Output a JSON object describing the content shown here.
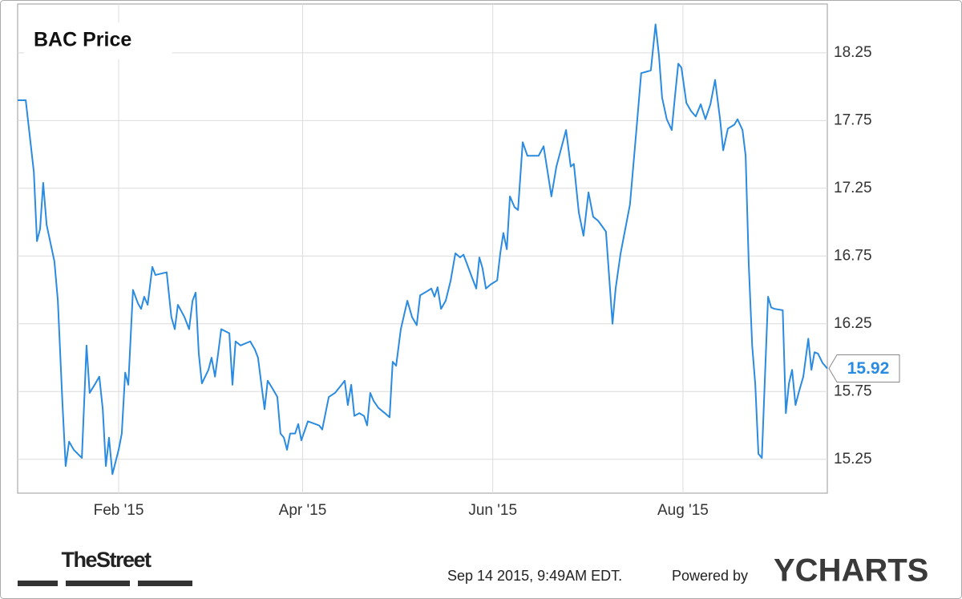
{
  "chart_data": {
    "type": "line",
    "title": "BAC Price",
    "x": [
      -1.4,
      1.2,
      3.8,
      4.8,
      5.8,
      6.8,
      7.9,
      10.4,
      11.5,
      13.0,
      14.0,
      15.1,
      16.6,
      19.2,
      20.7,
      21.7,
      23.3,
      24.8,
      25.9,
      26.9,
      27.9,
      29.0,
      31.0,
      32.0,
      33.1,
      34.1,
      35.6,
      37.2,
      38.2,
      39.2,
      40.3,
      41.8,
      42.8,
      46.4,
      47.9,
      49.0,
      50.0,
      52.1,
      53.6,
      54.7,
      55.7,
      56.7,
      57.7,
      59.8,
      60.8,
      61.9,
      62.9,
      63.9,
      66.5,
      67.5,
      68.5,
      70.1,
      73.2,
      74.7,
      75.7,
      76.8,
      77.8,
      78.8,
      80.4,
      81.9,
      82.9,
      84.0,
      85.0,
      86.0,
      87.6,
      88.6,
      89.6,
      91.7,
      95.3,
      96.3,
      98.4,
      100.4,
      102.5,
      103.5,
      104.5,
      105.6,
      106.6,
      108.2,
      109.7,
      110.7,
      111.7,
      112.8,
      114.3,
      116.4,
      117.9,
      118.9,
      120.0,
      121.5,
      123.6,
      125.1,
      126.6,
      127.7,
      129.2,
      131.3,
      132.3,
      133.3,
      134.4,
      135.9,
      137.5,
      139.0,
      140.5,
      141.6,
      142.6,
      144.2,
      145.7,
      146.7,
      147.7,
      148.8,
      150.3,
      152.4,
      153.4,
      154.4,
      155.5,
      156.5,
      158.0,
      159.1,
      160.6,
      162.1,
      165.7,
      167.3,
      168.8,
      169.8,
      171.4,
      172.9,
      174.5,
      176.0,
      177.0,
      178.6,
      180.1,
      181.7,
      183.2,
      184.8,
      187.3,
      189.4,
      190.4,
      192.0,
      193.5,
      195.0,
      197.1,
      198.6,
      200.2,
      201.7,
      203.2,
      204.3,
      205.3,
      206.8,
      208.4,
      209.4,
      210.5,
      211.5,
      213.1,
      214.6,
      216.1,
      217.7,
      219.2,
      220.8,
      222.3,
      223.9,
      224.9,
      226.4,
      228.5,
      229.5,
      231.1,
      232.1,
      233.1,
      234.2,
      235.2,
      236.2,
      237.3,
      238.3,
      239.3,
      240.3,
      241.4,
      244.0,
      245.0,
      246.0,
      247.0,
      248.1,
      249.1,
      250.6,
      252.2,
      253.2,
      254.2,
      255.3,
      256.8,
      258.3
    ],
    "series": [
      {
        "name": "BAC Price",
        "color": "#2a8be0",
        "values": [
          17.9,
          17.9,
          17.37,
          16.86,
          16.95,
          17.29,
          16.98,
          16.71,
          16.42,
          15.65,
          15.2,
          15.38,
          15.32,
          15.26,
          16.09,
          15.74,
          15.8,
          15.86,
          15.62,
          15.2,
          15.41,
          15.14,
          15.32,
          15.44,
          15.89,
          15.8,
          16.5,
          16.4,
          16.36,
          16.45,
          16.39,
          16.67,
          16.61,
          16.63,
          16.3,
          16.21,
          16.39,
          16.3,
          16.21,
          16.42,
          16.48,
          16.03,
          15.81,
          15.91,
          16.0,
          15.86,
          16.03,
          16.21,
          16.18,
          15.8,
          16.12,
          16.09,
          16.12,
          16.06,
          16.0,
          15.8,
          15.62,
          15.83,
          15.77,
          15.71,
          15.44,
          15.41,
          15.32,
          15.44,
          15.44,
          15.51,
          15.39,
          15.53,
          15.5,
          15.47,
          15.71,
          15.74,
          15.8,
          15.83,
          15.65,
          15.8,
          15.57,
          15.59,
          15.57,
          15.5,
          15.74,
          15.68,
          15.63,
          15.59,
          15.56,
          15.97,
          15.94,
          16.21,
          16.42,
          16.3,
          16.24,
          16.46,
          16.48,
          16.51,
          16.45,
          16.52,
          16.36,
          16.42,
          16.57,
          16.77,
          16.74,
          16.76,
          16.7,
          16.6,
          16.51,
          16.74,
          16.66,
          16.51,
          16.54,
          16.57,
          16.77,
          16.92,
          16.8,
          17.19,
          17.11,
          17.09,
          17.59,
          17.49,
          17.49,
          17.56,
          17.34,
          17.19,
          17.41,
          17.54,
          17.68,
          17.41,
          17.43,
          17.07,
          16.9,
          17.22,
          17.04,
          17.01,
          16.93,
          16.25,
          16.51,
          16.77,
          16.95,
          17.13,
          17.69,
          18.1,
          18.11,
          18.12,
          18.46,
          18.23,
          17.92,
          17.76,
          17.68,
          17.92,
          18.17,
          18.14,
          17.88,
          17.82,
          17.78,
          17.87,
          17.76,
          17.87,
          18.05,
          17.76,
          17.53,
          17.69,
          17.72,
          17.76,
          17.68,
          17.49,
          16.69,
          16.09,
          15.8,
          15.29,
          15.26,
          15.86,
          16.45,
          16.37,
          16.36,
          16.35,
          15.59,
          15.81,
          15.91,
          15.65,
          15.74,
          15.86,
          16.14,
          15.91,
          16.04,
          16.03,
          15.96,
          15.92
        ]
      }
    ],
    "xlim": [
      -1.4,
      258.3
    ],
    "xticks": [
      {
        "value": 31,
        "label": "Feb '15"
      },
      {
        "value": 90,
        "label": "Apr '15"
      },
      {
        "value": 151,
        "label": "Jun '15"
      },
      {
        "value": 212,
        "label": "Aug '15"
      }
    ],
    "ylim": [
      15.0,
      18.61
    ],
    "yticks": [
      15.25,
      15.75,
      16.25,
      16.75,
      17.25,
      17.75,
      18.25
    ],
    "grid": true,
    "timestamp": "Sep 14 2015, 9:49AM EDT.",
    "powered_by": "Powered by",
    "brand": "YCHARTS",
    "publisher": "TheStreet"
  }
}
